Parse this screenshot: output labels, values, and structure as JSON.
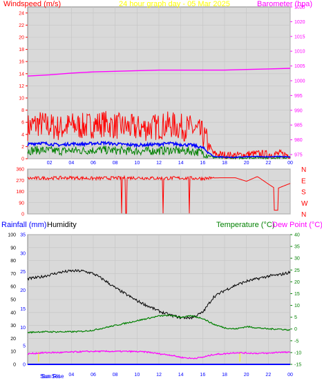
{
  "header": {
    "windspeed_label": "Windspeed (m/s)",
    "title": "24 hour graph day - 05 Mar 2025",
    "barometer_label": "Barometer (hpa)"
  },
  "lower_header": {
    "rainfall_label": "Rainfall (mm)",
    "humidity_label": "Humidity",
    "temperature_label": "Temperature (°C)",
    "dewpoint_label": "Dew Point (°C)"
  },
  "sun_labels": {
    "sunrise": "Sun Rise",
    "sunset": "Sun Set"
  },
  "colors": {
    "windspeed": "#ff0000",
    "barometer": "#ff00ff",
    "humidity": "#000000",
    "temperature": "#008000",
    "dewpoint": "#ff00ff",
    "rainfall": "#0000ff",
    "sun_marker": "#ffff00",
    "plot_bg": "#d9d9d9"
  },
  "chart_data": [
    {
      "type": "line",
      "name": "wind-and-pressure",
      "x_ticks": [
        "02",
        "04",
        "06",
        "08",
        "10",
        "12",
        "14",
        "16",
        "18",
        "20",
        "22",
        "00"
      ],
      "xlim": [
        0,
        24
      ],
      "ylim": [
        0,
        25
      ],
      "y_ticks": [
        0,
        2,
        4,
        6,
        8,
        10,
        12,
        14,
        16,
        18,
        20,
        22,
        24
      ],
      "y2lim": [
        975,
        1025
      ],
      "y2_ticks": [
        975,
        980,
        985,
        990,
        995,
        1000,
        1005,
        1010,
        1015,
        1020,
        1025
      ],
      "series": [
        {
          "name": "Windspeed (m/s)",
          "axis": "left",
          "x": [
            0,
            1,
            2,
            3,
            4,
            5,
            6,
            7,
            8,
            9,
            10,
            11,
            12,
            13,
            14,
            15,
            16,
            17,
            18,
            19,
            20,
            21,
            22,
            23,
            24
          ],
          "values": [
            5.2,
            5.8,
            5.4,
            5.0,
            5.5,
            5.3,
            5.6,
            5.8,
            5.4,
            5.2,
            5.0,
            5.1,
            5.3,
            5.6,
            5.2,
            5.0,
            4.0,
            0.8,
            0.6,
            0.5,
            0.7,
            0.8,
            0.7,
            0.8,
            0.6
          ]
        },
        {
          "name": "Barometer (hpa)",
          "axis": "right",
          "x": [
            0,
            2,
            4,
            6,
            8,
            10,
            12,
            14,
            16,
            18,
            20,
            22,
            24
          ],
          "values": [
            1001.6,
            1002,
            1002.6,
            1003,
            1003.2,
            1003.4,
            1003.6,
            1003.6,
            1003.6,
            1003.6,
            1003.8,
            1004,
            1004.2
          ]
        }
      ]
    },
    {
      "type": "line",
      "name": "wind-direction",
      "xlim": [
        0,
        24
      ],
      "y_ticks": [
        0,
        90,
        180,
        270,
        360
      ],
      "ylim": [
        0,
        360
      ],
      "compass_labels": [
        "N",
        "W",
        "S",
        "E",
        "N"
      ],
      "series": [
        {
          "name": "Wind direction",
          "x": [
            0,
            2,
            4,
            6,
            8,
            10,
            12,
            14,
            16,
            17.5,
            19,
            20,
            21,
            22,
            22.7,
            24
          ],
          "values": [
            285,
            288,
            290,
            285,
            288,
            290,
            286,
            288,
            285,
            290,
            290,
            262,
            300,
            240,
            200,
            245
          ]
        }
      ]
    },
    {
      "type": "line",
      "name": "temperature-humidity-rain",
      "x_ticks": [
        "Sun Rise",
        "04",
        "06",
        "08",
        "10",
        "12",
        "14",
        "16",
        "18",
        "20",
        "22",
        "00"
      ],
      "xlim": [
        0,
        24
      ],
      "y_ticks_left": [
        0,
        10,
        20,
        30,
        40,
        50,
        60,
        70,
        80,
        90,
        100
      ],
      "ylim_left": [
        0,
        100
      ],
      "rainfall_ticks": [
        0,
        5,
        10,
        15,
        20,
        25,
        30,
        35
      ],
      "rainfall_lim": [
        0,
        35
      ],
      "y_ticks_right": [
        -15,
        -10,
        -5,
        0,
        5,
        10,
        15,
        20,
        25,
        30,
        35,
        40
      ],
      "ylim_right": [
        -15,
        40
      ],
      "series": [
        {
          "name": "Humidity",
          "axis": "left",
          "x": [
            0,
            1,
            2,
            3,
            4,
            5,
            6,
            7,
            8,
            9,
            10,
            11,
            12,
            13,
            14,
            15,
            16,
            17,
            18,
            19,
            20,
            21,
            22,
            23,
            24
          ],
          "values": [
            66,
            67,
            69,
            71,
            72,
            72,
            70,
            65,
            59,
            54,
            49,
            45,
            41,
            38,
            36,
            36,
            40,
            52,
            57,
            61,
            64,
            66,
            68,
            69,
            71
          ]
        },
        {
          "name": "Temperature (°C)",
          "axis": "right",
          "x": [
            0,
            1,
            2,
            3,
            4,
            5,
            6,
            7,
            8,
            9,
            10,
            11,
            12,
            13,
            14,
            15,
            16,
            17,
            18,
            19,
            20,
            21,
            22,
            23,
            24
          ],
          "values": [
            -1.5,
            -1.2,
            -1.2,
            -1.2,
            -1.2,
            -1.0,
            -0.5,
            0.5,
            1.5,
            2.5,
            3.5,
            4.5,
            5.5,
            5.8,
            5.0,
            5.5,
            4.5,
            2.0,
            0.5,
            0.0,
            1.0,
            0.5,
            0.0,
            0.0,
            -0.5
          ]
        },
        {
          "name": "Dew Point (°C)",
          "axis": "right",
          "x": [
            0,
            1,
            2,
            3,
            4,
            5,
            6,
            7,
            8,
            9,
            10,
            11,
            12,
            13,
            14,
            15,
            16,
            17,
            18,
            19,
            20,
            21,
            22,
            23,
            24
          ],
          "values": [
            -10.5,
            -10.2,
            -10,
            -10,
            -9.8,
            -9.6,
            -9.5,
            -9.5,
            -9.5,
            -9.5,
            -9.6,
            -9.8,
            -10.5,
            -11,
            -12,
            -12.5,
            -12,
            -10.8,
            -10.5,
            -10.0,
            -10.2,
            -10.3,
            -10.3,
            -9.8,
            -10.0
          ]
        },
        {
          "name": "Rainfall (mm)",
          "axis": "rain",
          "x": [
            0,
            24
          ],
          "values": [
            0,
            0
          ]
        }
      ],
      "sunrise_hour": 1.0,
      "sunset_hour": 19.4
    }
  ]
}
